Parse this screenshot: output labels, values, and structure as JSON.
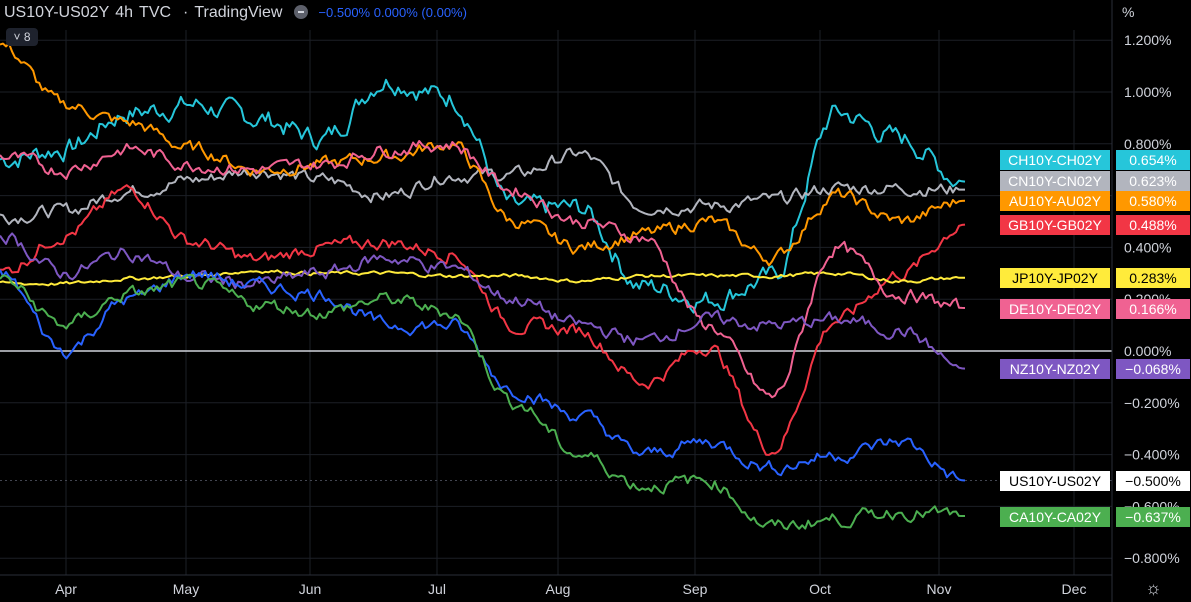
{
  "header": {
    "symbol": "US10Y-US02Y",
    "interval": "4h",
    "source": "TVC",
    "platform": "TradingView",
    "values": "−0.500%  0.000% (0.00%)"
  },
  "collapse_label": "˅ 8",
  "unit": "%",
  "settings_icon": "gear-icon",
  "chart_data": {
    "type": "line",
    "title": "US10Y-US02Y",
    "x_ticks": [
      "Apr",
      "May",
      "Jun",
      "Jul",
      "Aug",
      "Sep",
      "Oct",
      "Nov",
      "Dec"
    ],
    "y_ticks": [
      "1.200%",
      "1.000%",
      "0.800%",
      "0.400%",
      "0.200%",
      "0.000%",
      "−0.200%",
      "−0.400%",
      "−0.600%",
      "−0.800%"
    ],
    "ylim": [
      -0.8,
      1.2
    ],
    "grid": true,
    "x_positions": [
      0,
      0.5,
      1,
      1.5,
      2,
      2.5,
      3,
      3.5,
      4,
      4.5,
      5,
      5.5,
      6,
      6.5,
      7,
      7.5
    ],
    "series": [
      {
        "name": "CH10Y-CH02Y",
        "label": "0.654%",
        "color": "#26c6da",
        "last": 0.654,
        "values": [
          0.74,
          0.78,
          0.92,
          0.95,
          0.9,
          0.82,
          1.05,
          0.98,
          0.55,
          0.55,
          0.25,
          0.2,
          0.28,
          0.92,
          0.82,
          0.654
        ]
      },
      {
        "name": "CN10Y-CN02Y",
        "label": "0.623%",
        "color": "#b2b5be",
        "last": 0.623,
        "values": [
          0.52,
          0.54,
          0.62,
          0.66,
          0.7,
          0.66,
          0.6,
          0.68,
          0.68,
          0.76,
          0.56,
          0.56,
          0.58,
          0.63,
          0.63,
          0.623
        ]
      },
      {
        "name": "AU10Y-AU02Y",
        "label": "0.580%",
        "color": "#ff9800",
        "last": 0.58,
        "values": [
          1.18,
          0.95,
          0.88,
          0.78,
          0.7,
          0.72,
          0.75,
          0.8,
          0.5,
          0.4,
          0.45,
          0.5,
          0.36,
          0.6,
          0.5,
          0.58
        ]
      },
      {
        "name": "GB10Y-GB02Y",
        "label": "0.488%",
        "color": "#f23645",
        "last": 0.488,
        "values": [
          0.3,
          0.45,
          0.62,
          0.42,
          0.35,
          0.4,
          0.42,
          0.38,
          0.1,
          0.08,
          -0.12,
          0.02,
          -0.38,
          0.12,
          0.3,
          0.488
        ]
      },
      {
        "name": "JP10Y-JP02Y",
        "label": "0.283%",
        "color": "#ffeb3b",
        "last": 0.283,
        "values": [
          0.26,
          0.26,
          0.28,
          0.29,
          0.31,
          0.3,
          0.3,
          0.29,
          0.29,
          0.27,
          0.29,
          0.29,
          0.29,
          0.3,
          0.27,
          0.283
        ]
      },
      {
        "name": "DE10Y-DE02Y",
        "label": "0.166%",
        "color": "#f06292",
        "last": 0.166,
        "values": [
          0.75,
          0.7,
          0.78,
          0.72,
          0.7,
          0.72,
          0.78,
          0.8,
          0.62,
          0.5,
          0.44,
          0.1,
          -0.18,
          0.4,
          0.22,
          0.166
        ]
      },
      {
        "name": "NZ10Y-NZ02Y",
        "label": "−0.068%",
        "color": "#7e57c2",
        "last": -0.068,
        "values": [
          0.45,
          0.3,
          0.38,
          0.28,
          0.26,
          0.3,
          0.36,
          0.32,
          0.2,
          0.1,
          0.04,
          0.12,
          0.1,
          0.12,
          0.08,
          -0.068
        ]
      },
      {
        "name": "US10Y-US02Y",
        "label": "−0.500%",
        "color": "#2962ff",
        "last": -0.5,
        "values": [
          0.3,
          0.0,
          0.2,
          0.3,
          0.25,
          0.22,
          0.1,
          0.1,
          -0.15,
          -0.25,
          -0.4,
          -0.35,
          -0.45,
          -0.4,
          -0.35,
          -0.5
        ]
      },
      {
        "name": "CA10Y-CA02Y",
        "label": "−0.637%",
        "color": "#4caf50",
        "last": -0.637,
        "values": [
          0.28,
          0.1,
          0.22,
          0.26,
          0.18,
          0.15,
          0.2,
          0.15,
          -0.2,
          -0.4,
          -0.52,
          -0.5,
          -0.68,
          -0.65,
          -0.62,
          -0.637
        ]
      }
    ]
  }
}
